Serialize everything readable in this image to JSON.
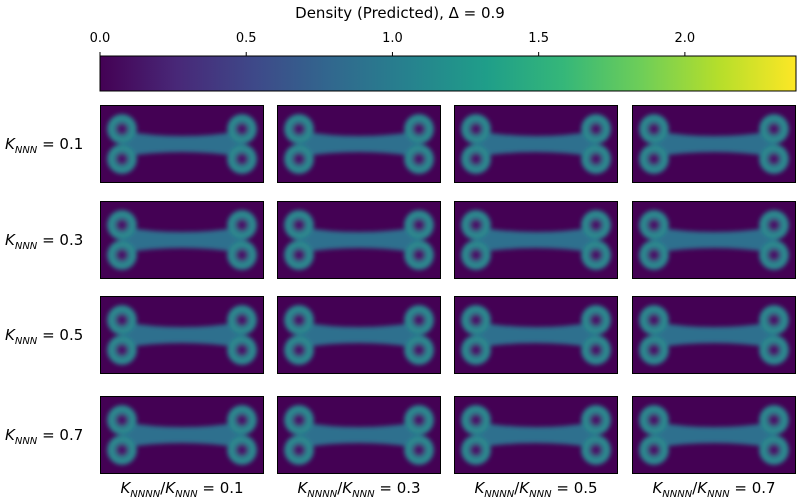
{
  "chart_data": {
    "type": "image-grid",
    "title": "Density (Predicted), Δ = 0.9",
    "colormap": "viridis",
    "colormap_colors": [
      "#440154",
      "#482878",
      "#3e4989",
      "#31688e",
      "#26828e",
      "#1f9e89",
      "#35b779",
      "#6ece58",
      "#b5de2b",
      "#fde725"
    ],
    "clim": [
      0,
      2.38
    ],
    "cticks": [
      {
        "value": 0,
        "label": "0.0"
      },
      {
        "value": 0.5,
        "label": "0.5"
      },
      {
        "value": 1,
        "label": "1.0"
      },
      {
        "value": 1.5,
        "label": "1.5"
      },
      {
        "value": 2,
        "label": "2.0"
      }
    ],
    "row_label": {
      "symbol": "K",
      "subscript": "NNN",
      "relation": " = "
    },
    "rows": [
      0.1,
      0.3,
      0.5,
      0.7
    ],
    "col_label": {
      "symbol": "K",
      "subscript": "NNNN",
      "divider": "/",
      "denominator_symbol": "K",
      "denominator_subscript": "NNN",
      "relation": " = "
    },
    "cols": [
      0.1,
      0.3,
      0.5,
      0.7
    ]
  }
}
